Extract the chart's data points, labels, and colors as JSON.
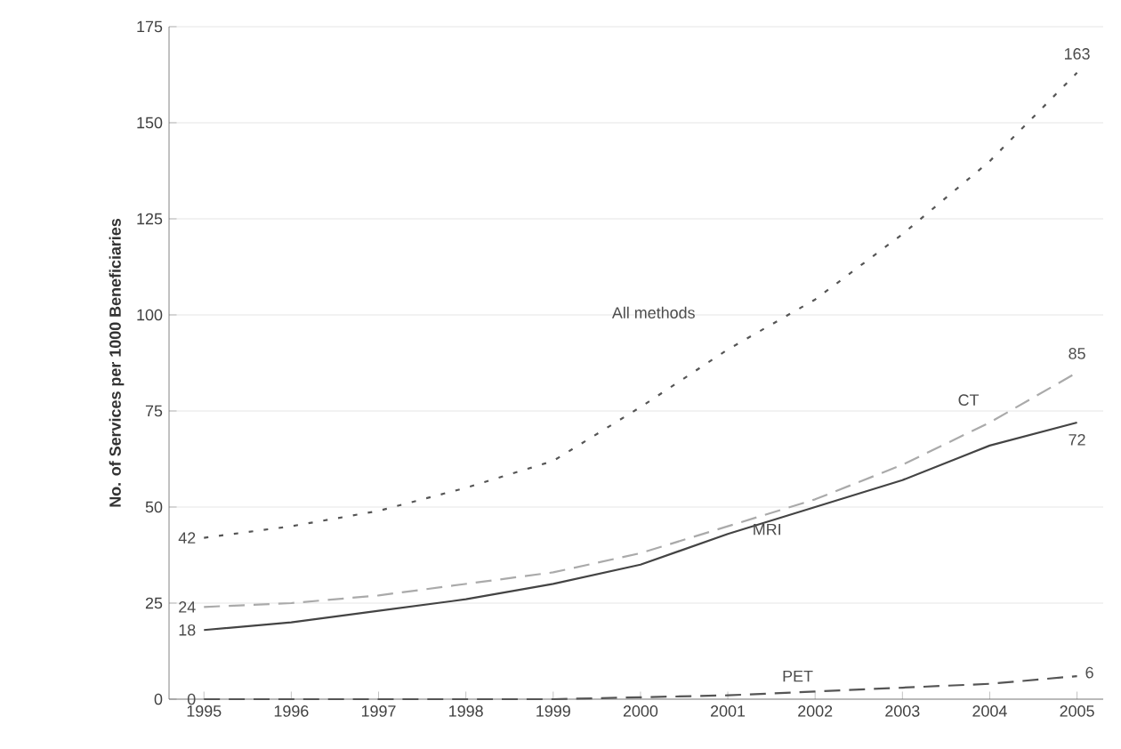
{
  "chart_data": {
    "type": "line",
    "ylabel": "No. of Services per 1000 Beneficiaries",
    "x": [
      1995,
      1996,
      1997,
      1998,
      1999,
      2000,
      2001,
      2002,
      2003,
      2004,
      2005
    ],
    "series": [
      {
        "name": "All methods",
        "color": "#555555",
        "line_style": "dotted",
        "values": [
          42,
          45,
          49,
          55,
          62,
          76,
          91,
          104,
          121,
          140,
          163
        ],
        "value_labels": [
          "42",
          null,
          null,
          null,
          null,
          null,
          null,
          null,
          null,
          null,
          "163"
        ]
      },
      {
        "name": "CT",
        "color": "#aaaaaa",
        "line_style": "dashed",
        "values": [
          24,
          25,
          27,
          30,
          33,
          38,
          45,
          52,
          61,
          72,
          85
        ],
        "value_labels": [
          "24",
          null,
          null,
          null,
          null,
          null,
          null,
          null,
          null,
          null,
          "85"
        ]
      },
      {
        "name": "MRI",
        "color": "#444444",
        "line_style": "solid",
        "values": [
          18,
          20,
          23,
          26,
          30,
          35,
          43,
          50,
          57,
          66,
          72
        ],
        "value_labels": [
          "18",
          null,
          null,
          null,
          null,
          null,
          null,
          null,
          null,
          null,
          "72"
        ]
      },
      {
        "name": "PET",
        "color": "#555555",
        "line_style": "dashed",
        "values": [
          0,
          0,
          0,
          0,
          0,
          0.5,
          1,
          2,
          3,
          4,
          6
        ],
        "value_labels": [
          "0",
          null,
          null,
          null,
          null,
          null,
          null,
          null,
          null,
          null,
          "6"
        ]
      }
    ],
    "xlim": [
      1994.6,
      2005.3
    ],
    "ylim": [
      0,
      175
    ],
    "xticks": [
      1995,
      1996,
      1997,
      1998,
      1999,
      2000,
      2001,
      2002,
      2003,
      2004,
      2005
    ],
    "yticks": [
      0,
      25,
      50,
      75,
      100,
      125,
      150,
      175
    ],
    "grid": "y",
    "marker": "none"
  }
}
